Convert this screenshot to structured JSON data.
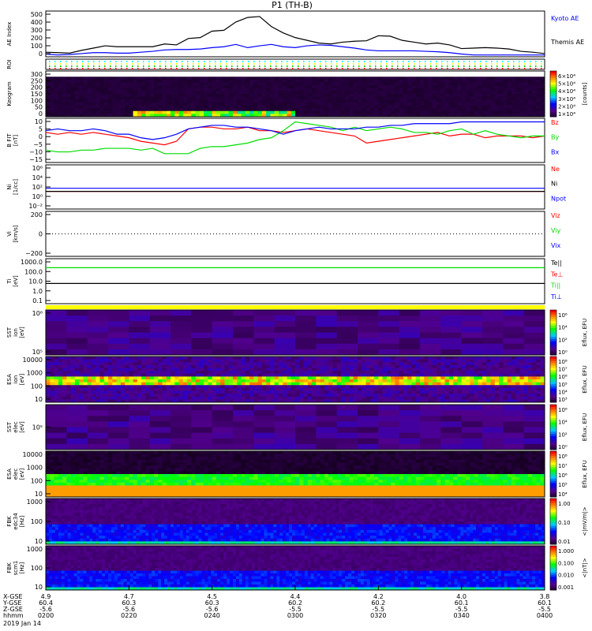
{
  "title": "P1 (TH-B)",
  "date_label": "2019 Jan 14",
  "colors": {
    "red": "#ff0000",
    "green": "#00dd00",
    "blue": "#0000ff",
    "black": "#000000",
    "yellow": "#ffff00"
  },
  "chart_data": [
    {
      "id": "ae",
      "type": "line",
      "ylabel": "AE Index",
      "ylim": [
        0,
        500
      ],
      "yticks": [
        "500",
        "400",
        "300",
        "200",
        "100",
        "0"
      ],
      "series": [
        {
          "name": "Kyoto AE",
          "color": "#0000ff",
          "values": [
            30,
            20,
            25,
            35,
            45,
            45,
            40,
            40,
            50,
            60,
            75,
            80,
            80,
            85,
            100,
            110,
            135,
            100,
            120,
            135,
            110,
            100,
            120,
            130,
            125,
            110,
            95,
            75,
            65,
            65,
            65,
            65,
            60,
            55,
            45,
            30,
            20,
            20,
            20,
            20,
            20,
            20,
            20
          ]
        },
        {
          "name": "Themis AE",
          "color": "#000000",
          "values": [
            50,
            45,
            40,
            70,
            95,
            120,
            110,
            110,
            110,
            110,
            140,
            130,
            200,
            210,
            280,
            290,
            380,
            430,
            440,
            330,
            260,
            210,
            180,
            150,
            140,
            160,
            170,
            175,
            230,
            225,
            180,
            160,
            140,
            150,
            130,
            90,
            95,
            100,
            95,
            85,
            60,
            50,
            35
          ]
        }
      ]
    },
    {
      "id": "roi",
      "type": "scatter",
      "ylabel": "ROI"
    },
    {
      "id": "keogram",
      "type": "heatmap",
      "ylabel": "Keogram",
      "ylim": [
        0,
        300
      ],
      "yticks": [
        "300",
        "250",
        "200",
        "150",
        "100",
        "50",
        "0"
      ],
      "colorbar": {
        "label": "[counts]",
        "ticks": [
          "6×10⁴",
          "5×10⁴",
          "4×10⁴",
          "3×10⁴",
          "2×10⁴",
          "1×10⁴"
        ]
      }
    },
    {
      "id": "bfit",
      "type": "line",
      "ylabel": "B FIT",
      "units": "[nT]",
      "ylim": [
        -15,
        10
      ],
      "yticks": [
        "10",
        "5",
        "0",
        "−5",
        "−10",
        "−15"
      ],
      "series": [
        {
          "name": "Bz",
          "color": "#ff0000",
          "values": [
            2,
            1,
            2,
            1,
            2,
            1,
            0,
            -1,
            -3,
            -4,
            -5,
            -3,
            4,
            5,
            5,
            4,
            4,
            5,
            3,
            3,
            2,
            3,
            4,
            3,
            2,
            1,
            0,
            -4,
            -3,
            -2,
            -1,
            0,
            1,
            2,
            0,
            1,
            1,
            -1,
            0,
            0,
            0,
            -1,
            0
          ]
        },
        {
          "name": "By",
          "color": "#00dd00",
          "values": [
            -8,
            -9,
            -9,
            -8,
            -8,
            -7,
            -7,
            -7,
            -8,
            -7,
            -10,
            -10,
            -10,
            -7,
            -6,
            -6,
            -5,
            -4,
            -2,
            -1,
            3,
            8,
            7,
            6,
            5,
            3,
            5,
            3,
            4,
            5,
            4,
            2,
            2,
            1,
            3,
            4,
            1,
            3,
            1,
            0,
            -1,
            0,
            0
          ]
        },
        {
          "name": "Bx",
          "color": "#0000ff",
          "values": [
            3,
            4,
            3,
            3,
            4,
            3,
            1,
            1,
            -1,
            -2,
            -1,
            1,
            4,
            5,
            6,
            6,
            5,
            5,
            4,
            3,
            1,
            3,
            4,
            5,
            4,
            4,
            4,
            5,
            5,
            6,
            6,
            7,
            7,
            7,
            7,
            8,
            8,
            8,
            8,
            8,
            8,
            8,
            8
          ]
        }
      ]
    },
    {
      "id": "ni",
      "type": "line",
      "ylabel": "Ni",
      "units": "[1/cc]",
      "yticks": [
        "10⁶",
        "10⁴",
        "10²",
        "10⁰",
        "10⁻²"
      ],
      "series": [
        {
          "name": "Ne",
          "color": "#ff0000"
        },
        {
          "name": "Ni",
          "color": "#000000"
        },
        {
          "name": "Npot",
          "color": "#0000ff"
        }
      ]
    },
    {
      "id": "vi",
      "type": "line",
      "ylabel": "Vi",
      "units": "[km/s]",
      "yticks": [
        "200",
        "0",
        "−200"
      ],
      "series": [
        {
          "name": "Viz",
          "color": "#ff0000"
        },
        {
          "name": "Viy",
          "color": "#00dd00"
        },
        {
          "name": "Vix",
          "color": "#0000ff"
        }
      ]
    },
    {
      "id": "ti",
      "type": "line",
      "ylabel": "Ti",
      "units": "[eV]",
      "yticks": [
        "1000.0",
        "100.0",
        "10.0",
        "1.0",
        "0.1"
      ],
      "series": [
        {
          "name": "Te||",
          "color": "#000000"
        },
        {
          "name": "Te⊥",
          "color": "#ff0000"
        },
        {
          "name": "Ti||",
          "color": "#00dd00"
        },
        {
          "name": "Ti⊥",
          "color": "#0000ff"
        }
      ]
    },
    {
      "id": "sst_i",
      "type": "heatmap",
      "ylabel": "SST",
      "sub": "ion",
      "units": "[eV]",
      "yticks": [
        "10⁶",
        "10⁵"
      ],
      "colorbar": {
        "label": "Eflux, EFU",
        "ticks": [
          "10⁶",
          "10⁴",
          "10²",
          "10⁰"
        ]
      }
    },
    {
      "id": "esa_i",
      "type": "heatmap",
      "ylabel": "ESA",
      "sub": "ion",
      "units": "[eV]",
      "yticks": [
        "10000",
        "1000",
        "100",
        "10"
      ],
      "colorbar": {
        "label": "Eflux, EFU",
        "ticks": [
          "10⁸",
          "10⁷",
          "10⁶",
          "10⁵",
          "10⁴",
          "10³"
        ]
      }
    },
    {
      "id": "sst_e",
      "type": "heatmap",
      "ylabel": "SST",
      "sub": "elec",
      "units": "[eV]",
      "yticks": [
        "10⁵"
      ],
      "colorbar": {
        "label": "Eflux, EFU",
        "ticks": [
          "10⁶",
          "10⁴",
          "10²",
          "10⁰"
        ]
      }
    },
    {
      "id": "esa_e",
      "type": "heatmap",
      "ylabel": "ESA",
      "sub": "elec",
      "units": "[eV]",
      "yticks": [
        "10000",
        "1000",
        "100",
        "10"
      ],
      "colorbar": {
        "label": "Eflux, EFU",
        "ticks": [
          "10⁸",
          "10⁷",
          "10⁶",
          "10⁵",
          "10⁴"
        ]
      }
    },
    {
      "id": "fbk_e",
      "type": "heatmap",
      "ylabel": "FBK",
      "sub": "edc34",
      "units": "[Hz]",
      "yticks": [
        "1000",
        "100",
        "10"
      ],
      "colorbar": {
        "label": "<|mV/m|>",
        "ticks": [
          "1.00",
          "0.10",
          "0.01"
        ]
      }
    },
    {
      "id": "fbk_b",
      "type": "heatmap",
      "ylabel": "FBK",
      "sub": "scm1",
      "units": "[Hz]",
      "yticks": [
        "1000",
        "100",
        "10"
      ],
      "colorbar": {
        "label": "<|nT|>",
        "ticks": [
          "1.000",
          "0.100",
          "0.010",
          "0.001"
        ]
      }
    }
  ],
  "xaxis": {
    "row_labels": [
      "X-GSE",
      "Y-GSE",
      "Z-GSE",
      "hhmm"
    ],
    "ticks": [
      {
        "x": "4.9",
        "y": "60.4",
        "z": "-5.6",
        "t": "0200"
      },
      {
        "x": "4.7",
        "y": "60.3",
        "z": "-5.6",
        "t": "0220"
      },
      {
        "x": "4.5",
        "y": "60.3",
        "z": "-5.6",
        "t": "0240"
      },
      {
        "x": "4.4",
        "y": "60.2",
        "z": "-5.5",
        "t": "0300"
      },
      {
        "x": "4.2",
        "y": "60.2",
        "z": "-5.5",
        "t": "0320"
      },
      {
        "x": "4.0",
        "y": "60.1",
        "z": "-5.5",
        "t": "0340"
      },
      {
        "x": "3.8",
        "y": "60.1",
        "z": "-5.5",
        "t": "0400"
      }
    ]
  }
}
